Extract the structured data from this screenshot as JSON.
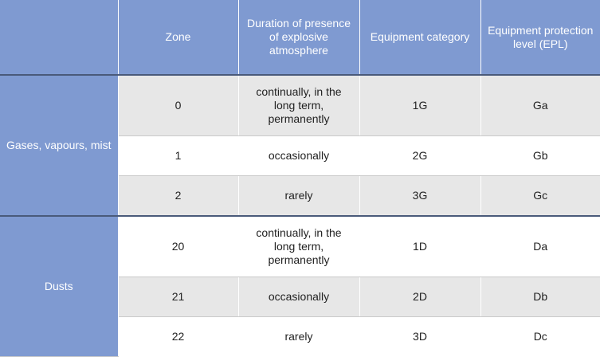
{
  "header": {
    "group": "",
    "zone": "Zone",
    "duration": "Duration of presence of explosive atmosphere",
    "category": "Equipment category",
    "epl": "Equipment protection level (EPL)"
  },
  "groups": [
    {
      "label": "Gases, vapours, mist",
      "rows": [
        {
          "zone": "0",
          "duration": "continually, in the long term, permanently",
          "category": "1G",
          "epl": "Ga"
        },
        {
          "zone": "1",
          "duration": "occasionally",
          "category": "2G",
          "epl": "Gb"
        },
        {
          "zone": "2",
          "duration": "rarely",
          "category": "3G",
          "epl": "Gc"
        }
      ]
    },
    {
      "label": "Dusts",
      "rows": [
        {
          "zone": "20",
          "duration": "continually, in the long term, permanently",
          "category": "1D",
          "epl": "Da"
        },
        {
          "zone": "21",
          "duration": "occasionally",
          "category": "2D",
          "epl": "Db"
        },
        {
          "zone": "22",
          "duration": "rarely",
          "category": "3D",
          "epl": "Dc"
        }
      ]
    }
  ],
  "colors": {
    "header_bg": "#7f9ad1",
    "shaded_row": "#e7e7e7",
    "divider": "#4a5a7a"
  }
}
